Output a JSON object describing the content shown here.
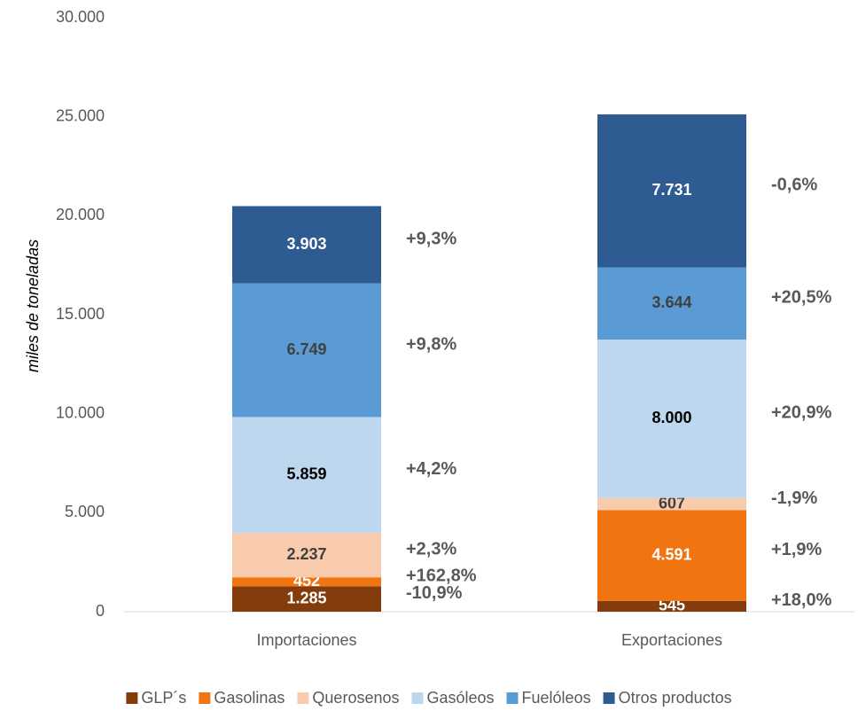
{
  "chart_data": {
    "type": "stacked_bar",
    "y_label": "miles de toneladas",
    "categories": [
      "Importaciones",
      "Exportaciones"
    ],
    "ylim": [
      0,
      30000
    ],
    "yticks": [
      0,
      {
        "value": 5000,
        "label": "5.000"
      },
      {
        "value": 10000,
        "label": "10.000"
      },
      {
        "value": 15000,
        "label": "15.000"
      },
      {
        "value": 20000,
        "label": "20.000"
      },
      {
        "value": 25000,
        "label": "25.000"
      },
      {
        "value": 30000,
        "label": "30.000"
      }
    ],
    "legend": "bottom",
    "series": [
      {
        "name": "GLP´s",
        "color": "#843c0c",
        "values": [
          1285,
          545
        ],
        "value_labels": [
          "1.285",
          "545"
        ],
        "changes": [
          "-10,9%",
          "+18,0%"
        ]
      },
      {
        "name": "Gasolinas",
        "color": "#f0740f",
        "values": [
          452,
          4591
        ],
        "value_labels": [
          "452",
          "4.591"
        ],
        "changes": [
          "+162,8%",
          "+1,9%"
        ]
      },
      {
        "name": "Querosenos",
        "color": "#f8cbad",
        "values": [
          2237,
          607
        ],
        "value_labels": [
          "2.237",
          "607"
        ],
        "changes": [
          "+2,3%",
          "-1,9%"
        ]
      },
      {
        "name": "Gasóleos",
        "color": "#bdd7ee",
        "values": [
          5859,
          8000
        ],
        "value_labels": [
          "5.859",
          "8.000"
        ],
        "changes": [
          "+4,2%",
          "+20,9%"
        ]
      },
      {
        "name": "Fuelóleos",
        "color": "#5b9bd5",
        "values": [
          6749,
          3644
        ],
        "value_labels": [
          "6.749",
          "3.644"
        ],
        "changes": [
          "+9,8%",
          "+20,5%"
        ]
      },
      {
        "name": "Otros productos",
        "color": "#2e5b91",
        "values": [
          3903,
          7731
        ],
        "value_labels": [
          "3.903",
          "7.731"
        ],
        "changes": [
          "+9,3%",
          "-0,6%"
        ]
      }
    ]
  }
}
